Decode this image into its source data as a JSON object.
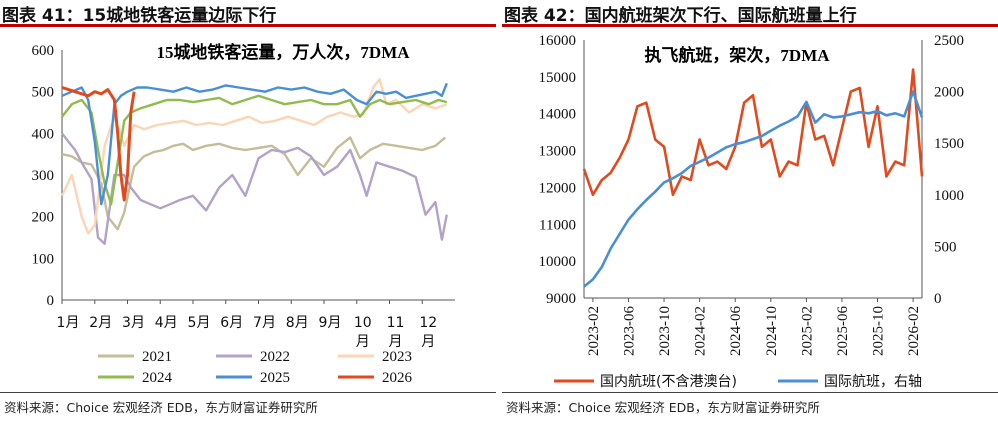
{
  "charts": [
    {
      "figure_title": "图表 41：15城地铁客运量边际下行",
      "source": "资料来源：Choice 宏观经济 EDB，东方财富证券研究所",
      "colors": {
        "2021": "#c4bd97",
        "2022": "#b3a2c7",
        "2023": "#fcd5b5",
        "2024": "#8fbc4c",
        "2025": "#4a8fd4",
        "2026": "#e04a1f"
      }
    },
    {
      "figure_title": "图表 42：国内航班架次下行、国际航班量上行",
      "source": "资料来源：Choice 宏观经济 EDB，东方财富证券研究所",
      "colors": {
        "domestic": "#e04a1f",
        "international": "#4a8fd4"
      }
    }
  ],
  "chart_data": [
    {
      "type": "line",
      "annotation": "15城地铁客运量，万人次，7DMA",
      "ylim": [
        0,
        600
      ],
      "yticks": [
        0,
        100,
        200,
        300,
        400,
        500,
        600
      ],
      "xlim": [
        1,
        13
      ],
      "x_tick_labels": [
        "1月",
        "2月",
        "3月",
        "4月",
        "5月",
        "6月",
        "7月",
        "8月",
        "9月",
        "10月",
        "11月",
        "12月"
      ],
      "legend_position": "bottom",
      "series": [
        {
          "name": "2021",
          "x": [
            1,
            1.3,
            1.6,
            1.9,
            2.2,
            2.4,
            2.7,
            2.9,
            3.2,
            3.5,
            3.8,
            4.1,
            4.4,
            4.7,
            5,
            5.4,
            5.8,
            6.2,
            6.6,
            7,
            7.4,
            7.8,
            8.2,
            8.6,
            9,
            9.4,
            9.8,
            10.1,
            10.4,
            10.8,
            11.2,
            11.6,
            12,
            12.4,
            12.7
          ],
          "y": [
            350,
            345,
            330,
            325,
            280,
            200,
            170,
            210,
            320,
            345,
            355,
            360,
            370,
            375,
            360,
            370,
            375,
            365,
            360,
            365,
            370,
            350,
            300,
            340,
            320,
            365,
            390,
            340,
            360,
            375,
            370,
            365,
            360,
            370,
            390
          ]
        },
        {
          "name": "2022",
          "x": [
            1,
            1.2,
            1.4,
            1.6,
            1.9,
            2.1,
            2.3,
            2.6,
            2.9,
            3.1,
            3.4,
            3.7,
            4,
            4.3,
            4.6,
            5,
            5.4,
            5.8,
            6.2,
            6.6,
            7,
            7.4,
            7.8,
            8.2,
            8.6,
            9,
            9.4,
            9.8,
            10.1,
            10.3,
            10.6,
            11,
            11.4,
            11.8,
            12.1,
            12.4,
            12.6,
            12.75
          ],
          "y": [
            400,
            380,
            360,
            330,
            290,
            150,
            135,
            300,
            300,
            270,
            240,
            230,
            220,
            230,
            240,
            250,
            215,
            270,
            300,
            250,
            340,
            360,
            355,
            365,
            345,
            300,
            320,
            360,
            300,
            250,
            330,
            320,
            310,
            295,
            205,
            235,
            145,
            205
          ]
        },
        {
          "name": "2023",
          "x": [
            1,
            1.3,
            1.6,
            1.8,
            2,
            2.3,
            2.6,
            2.9,
            3.2,
            3.5,
            3.9,
            4.3,
            4.7,
            5.1,
            5.5,
            5.9,
            6.3,
            6.7,
            7.1,
            7.5,
            7.9,
            8.3,
            8.7,
            9.1,
            9.5,
            9.9,
            10.2,
            10.5,
            10.7,
            10.9,
            11.2,
            11.6,
            12,
            12.4,
            12.75
          ],
          "y": [
            250,
            300,
            200,
            160,
            180,
            370,
            440,
            370,
            420,
            410,
            420,
            425,
            430,
            420,
            425,
            420,
            430,
            440,
            425,
            430,
            440,
            430,
            420,
            440,
            450,
            440,
            445,
            510,
            530,
            470,
            480,
            450,
            470,
            460,
            470
          ]
        },
        {
          "name": "2024",
          "x": [
            1,
            1.3,
            1.6,
            1.9,
            2.1,
            2.3,
            2.5,
            2.7,
            2.9,
            3.1,
            3.4,
            3.8,
            4.2,
            4.6,
            5,
            5.4,
            5.8,
            6.2,
            6.6,
            7,
            7.4,
            7.8,
            8.2,
            8.6,
            9,
            9.4,
            9.8,
            10.1,
            10.4,
            10.7,
            11,
            11.4,
            11.8,
            12.2,
            12.5,
            12.75
          ],
          "y": [
            440,
            470,
            480,
            450,
            360,
            280,
            230,
            330,
            430,
            450,
            460,
            470,
            480,
            480,
            475,
            480,
            485,
            470,
            480,
            490,
            480,
            470,
            475,
            480,
            470,
            470,
            480,
            440,
            470,
            480,
            470,
            475,
            480,
            470,
            480,
            475
          ]
        },
        {
          "name": "2025",
          "x": [
            1,
            1.3,
            1.6,
            1.8,
            2,
            2.2,
            2.4,
            2.6,
            2.8,
            3,
            3.3,
            3.6,
            4,
            4.4,
            4.8,
            5.2,
            5.6,
            6,
            6.4,
            6.8,
            7.2,
            7.6,
            8,
            8.4,
            8.8,
            9.2,
            9.6,
            10,
            10.3,
            10.6,
            10.9,
            11.2,
            11.5,
            11.8,
            12.1,
            12.4,
            12.6,
            12.75
          ],
          "y": [
            490,
            500,
            510,
            480,
            380,
            230,
            300,
            470,
            490,
            500,
            510,
            510,
            505,
            500,
            510,
            500,
            505,
            515,
            510,
            505,
            500,
            510,
            505,
            510,
            500,
            495,
            505,
            480,
            470,
            500,
            495,
            500,
            485,
            490,
            495,
            500,
            490,
            520
          ]
        },
        {
          "name": "2026",
          "x": [
            1,
            1.2,
            1.4,
            1.6,
            1.8,
            2,
            2.2,
            2.4,
            2.6,
            2.7,
            2.8,
            2.9,
            3,
            3.1,
            3.2
          ],
          "y": [
            510,
            505,
            500,
            495,
            490,
            500,
            495,
            505,
            480,
            400,
            300,
            240,
            300,
            450,
            500
          ]
        }
      ]
    },
    {
      "type": "line",
      "annotation": "执飞航班，架次，7DMA",
      "ylim": [
        9000,
        16000
      ],
      "yticks": [
        9000,
        10000,
        11000,
        12000,
        13000,
        14000,
        15000,
        16000
      ],
      "y2lim": [
        0,
        2500
      ],
      "y2ticks": [
        0,
        500,
        1000,
        1500,
        2000,
        2500
      ],
      "xlim": [
        "2023-01",
        "2026-03"
      ],
      "x_tick_labels": [
        "2023-02",
        "2023-06",
        "2023-10",
        "2024-02",
        "2024-06",
        "2024-10",
        "2025-02",
        "2025-06",
        "2025-10",
        "2026-02"
      ],
      "legend_position": "bottom",
      "series": [
        {
          "name": "国内航班(不含港澳台)",
          "axis": "left",
          "x": [
            "2023-01",
            "2023-02",
            "2023-03",
            "2023-04",
            "2023-05",
            "2023-06",
            "2023-07",
            "2023-08",
            "2023-09",
            "2023-10",
            "2023-11",
            "2023-12",
            "2024-01",
            "2024-02",
            "2024-03",
            "2024-04",
            "2024-05",
            "2024-06",
            "2024-07",
            "2024-08",
            "2024-09",
            "2024-10",
            "2024-11",
            "2024-12",
            "2025-01",
            "2025-02",
            "2025-03",
            "2025-04",
            "2025-05",
            "2025-06",
            "2025-07",
            "2025-08",
            "2025-09",
            "2025-10",
            "2025-11",
            "2025-12",
            "2026-01",
            "2026-02",
            "2026-03"
          ],
          "y": [
            12500,
            11800,
            12200,
            12400,
            12800,
            13300,
            14200,
            14300,
            13300,
            13100,
            11800,
            12300,
            12200,
            13300,
            12600,
            12700,
            12500,
            13100,
            14300,
            14500,
            13100,
            13300,
            12300,
            12700,
            12600,
            14300,
            13300,
            13400,
            12600,
            13600,
            14600,
            14700,
            13100,
            14200,
            12300,
            12700,
            12600,
            15200,
            12300
          ]
        },
        {
          "name": "国际航班，右轴",
          "axis": "right",
          "x": [
            "2023-01",
            "2023-02",
            "2023-03",
            "2023-04",
            "2023-05",
            "2023-06",
            "2023-07",
            "2023-08",
            "2023-09",
            "2023-10",
            "2023-11",
            "2023-12",
            "2024-01",
            "2024-02",
            "2024-03",
            "2024-04",
            "2024-05",
            "2024-06",
            "2024-07",
            "2024-08",
            "2024-09",
            "2024-10",
            "2024-11",
            "2024-12",
            "2025-01",
            "2025-02",
            "2025-03",
            "2025-04",
            "2025-05",
            "2025-06",
            "2025-07",
            "2025-08",
            "2025-09",
            "2025-10",
            "2025-11",
            "2025-12",
            "2026-01",
            "2026-02",
            "2026-03"
          ],
          "y": [
            110,
            180,
            300,
            480,
            620,
            760,
            860,
            950,
            1030,
            1120,
            1160,
            1210,
            1280,
            1320,
            1360,
            1410,
            1460,
            1490,
            1510,
            1540,
            1570,
            1620,
            1670,
            1710,
            1760,
            1900,
            1700,
            1780,
            1750,
            1760,
            1780,
            1800,
            1790,
            1810,
            1770,
            1790,
            1760,
            2000,
            1750
          ]
        }
      ]
    }
  ]
}
